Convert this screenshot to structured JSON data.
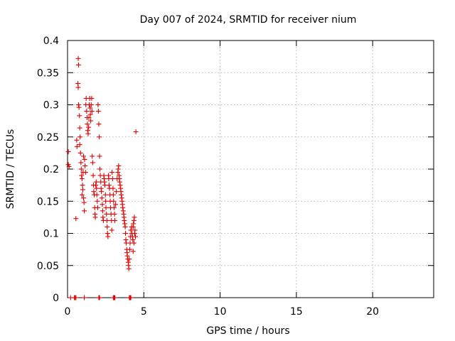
{
  "chart_data": {
    "type": "scatter",
    "title": "Day 007 of 2024, SRMTID for receiver nium",
    "xlabel": "GPS time / hours",
    "ylabel": "SRMTID / TECUs",
    "xlim": [
      0,
      24
    ],
    "ylim": [
      0,
      0.4
    ],
    "xticks": [
      0,
      5,
      10,
      15,
      20
    ],
    "xtick_labels": [
      "0",
      "5",
      "10",
      "15",
      "20"
    ],
    "yticks": [
      0,
      0.05,
      0.1,
      0.15,
      0.2,
      0.25,
      0.3,
      0.35,
      0.4
    ],
    "ytick_labels": [
      "0",
      "0.05",
      "0.1",
      "0.15",
      "0.2",
      "0.25",
      "0.3",
      "0.35",
      "0.4"
    ],
    "grid": true,
    "marker": "+",
    "series": [
      {
        "name": "SRMTID",
        "color": "#e00000",
        "points": [
          [
            0.05,
            0.227
          ],
          [
            0.05,
            0.207
          ],
          [
            0.1,
            0.204
          ],
          [
            0.55,
            0.123
          ],
          [
            0.6,
            0.245
          ],
          [
            0.62,
            0.235
          ],
          [
            0.7,
            0.372
          ],
          [
            0.72,
            0.362
          ],
          [
            0.68,
            0.333
          ],
          [
            0.7,
            0.327
          ],
          [
            0.72,
            0.3
          ],
          [
            0.75,
            0.296
          ],
          [
            0.78,
            0.283
          ],
          [
            0.8,
            0.264
          ],
          [
            0.82,
            0.25
          ],
          [
            0.8,
            0.238
          ],
          [
            0.85,
            0.225
          ],
          [
            0.88,
            0.21
          ],
          [
            0.9,
            0.2
          ],
          [
            0.92,
            0.19
          ],
          [
            0.95,
            0.185
          ],
          [
            0.98,
            0.175
          ],
          [
            1.0,
            0.168
          ],
          [
            0.95,
            0.16
          ],
          [
            1.05,
            0.155
          ],
          [
            1.08,
            0.148
          ],
          [
            1.1,
            0.135
          ],
          [
            1.02,
            0.195
          ],
          [
            1.05,
            0.22
          ],
          [
            1.12,
            0.215
          ],
          [
            1.15,
            0.205
          ],
          [
            1.18,
            0.195
          ],
          [
            1.2,
            0.3
          ],
          [
            1.22,
            0.31
          ],
          [
            1.25,
            0.29
          ],
          [
            1.28,
            0.28
          ],
          [
            1.3,
            0.27
          ],
          [
            1.32,
            0.26
          ],
          [
            1.35,
            0.255
          ],
          [
            1.38,
            0.265
          ],
          [
            1.4,
            0.28
          ],
          [
            1.42,
            0.3
          ],
          [
            1.45,
            0.31
          ],
          [
            1.48,
            0.295
          ],
          [
            1.5,
            0.285
          ],
          [
            1.52,
            0.275
          ],
          [
            1.55,
            0.3
          ],
          [
            1.58,
            0.31
          ],
          [
            1.6,
            0.29
          ],
          [
            1.62,
            0.22
          ],
          [
            1.65,
            0.21
          ],
          [
            1.68,
            0.19
          ],
          [
            1.7,
            0.175
          ],
          [
            1.72,
            0.165
          ],
          [
            1.75,
            0.16
          ],
          [
            1.78,
            0.14
          ],
          [
            1.8,
            0.13
          ],
          [
            1.82,
            0.125
          ],
          [
            1.85,
            0.175
          ],
          [
            1.88,
            0.18
          ],
          [
            1.9,
            0.17
          ],
          [
            1.92,
            0.16
          ],
          [
            1.95,
            0.15
          ],
          [
            1.98,
            0.14
          ],
          [
            2.0,
            0.3
          ],
          [
            2.02,
            0.29
          ],
          [
            2.05,
            0.27
          ],
          [
            2.08,
            0.25
          ],
          [
            2.1,
            0.22
          ],
          [
            2.12,
            0.2
          ],
          [
            2.15,
            0.19
          ],
          [
            2.18,
            0.18
          ],
          [
            2.2,
            0.17
          ],
          [
            2.22,
            0.165
          ],
          [
            2.25,
            0.155
          ],
          [
            2.28,
            0.145
          ],
          [
            2.3,
            0.135
          ],
          [
            2.32,
            0.125
          ],
          [
            2.35,
            0.12
          ],
          [
            2.38,
            0.19
          ],
          [
            2.4,
            0.185
          ],
          [
            2.42,
            0.18
          ],
          [
            2.45,
            0.175
          ],
          [
            2.48,
            0.16
          ],
          [
            2.5,
            0.15
          ],
          [
            2.52,
            0.14
          ],
          [
            2.55,
            0.13
          ],
          [
            2.58,
            0.12
          ],
          [
            2.6,
            0.11
          ],
          [
            2.62,
            0.1
          ],
          [
            2.65,
            0.095
          ],
          [
            2.68,
            0.19
          ],
          [
            2.7,
            0.185
          ],
          [
            2.72,
            0.175
          ],
          [
            2.75,
            0.17
          ],
          [
            2.78,
            0.16
          ],
          [
            2.8,
            0.15
          ],
          [
            2.82,
            0.14
          ],
          [
            2.85,
            0.13
          ],
          [
            2.88,
            0.12
          ],
          [
            2.9,
            0.105
          ],
          [
            2.92,
            0.195
          ],
          [
            2.95,
            0.185
          ],
          [
            2.98,
            0.17
          ],
          [
            3.0,
            0.16
          ],
          [
            3.02,
            0.15
          ],
          [
            3.05,
            0.14
          ],
          [
            3.08,
            0.13
          ],
          [
            3.1,
            0.12
          ],
          [
            3.15,
            0.145
          ],
          [
            3.2,
            0.165
          ],
          [
            3.25,
            0.185
          ],
          [
            3.3,
            0.195
          ],
          [
            3.32,
            0.2
          ],
          [
            3.35,
            0.205
          ],
          [
            3.38,
            0.19
          ],
          [
            3.4,
            0.185
          ],
          [
            3.42,
            0.18
          ],
          [
            3.45,
            0.175
          ],
          [
            3.48,
            0.17
          ],
          [
            3.5,
            0.165
          ],
          [
            3.52,
            0.16
          ],
          [
            3.55,
            0.155
          ],
          [
            3.58,
            0.15
          ],
          [
            3.6,
            0.145
          ],
          [
            3.62,
            0.14
          ],
          [
            3.65,
            0.135
          ],
          [
            3.68,
            0.13
          ],
          [
            3.7,
            0.125
          ],
          [
            3.72,
            0.12
          ],
          [
            3.75,
            0.115
          ],
          [
            3.78,
            0.11
          ],
          [
            3.8,
            0.1
          ],
          [
            3.82,
            0.09
          ],
          [
            3.85,
            0.085
          ],
          [
            3.88,
            0.075
          ],
          [
            3.9,
            0.07
          ],
          [
            3.92,
            0.065
          ],
          [
            3.95,
            0.06
          ],
          [
            3.98,
            0.055
          ],
          [
            4.0,
            0.05
          ],
          [
            4.02,
            0.045
          ],
          [
            4.05,
            0.06
          ],
          [
            4.08,
            0.075
          ],
          [
            4.1,
            0.085
          ],
          [
            4.12,
            0.095
          ],
          [
            4.15,
            0.105
          ],
          [
            4.2,
            0.11
          ],
          [
            4.22,
            0.1
          ],
          [
            4.25,
            0.095
          ],
          [
            4.28,
            0.09
          ],
          [
            4.3,
            0.11
          ],
          [
            4.32,
            0.115
          ],
          [
            4.35,
            0.12
          ],
          [
            4.38,
            0.125
          ],
          [
            4.4,
            0.1
          ],
          [
            4.42,
            0.105
          ],
          [
            4.45,
            0.095
          ],
          [
            4.48,
            0.258
          ],
          [
            4.3,
            0.072
          ],
          [
            4.35,
            0.085
          ],
          [
            0.2,
            0.0
          ],
          [
            0.45,
            0.0
          ],
          [
            0.5,
            0.0
          ],
          [
            0.55,
            0.0
          ],
          [
            1.1,
            0.0
          ],
          [
            2.05,
            0.0
          ],
          [
            2.1,
            0.0
          ],
          [
            3.0,
            0.0
          ],
          [
            3.05,
            0.0
          ],
          [
            3.1,
            0.0
          ],
          [
            4.05,
            0.0
          ],
          [
            4.1,
            0.0
          ],
          [
            4.15,
            0.0
          ]
        ]
      }
    ]
  }
}
